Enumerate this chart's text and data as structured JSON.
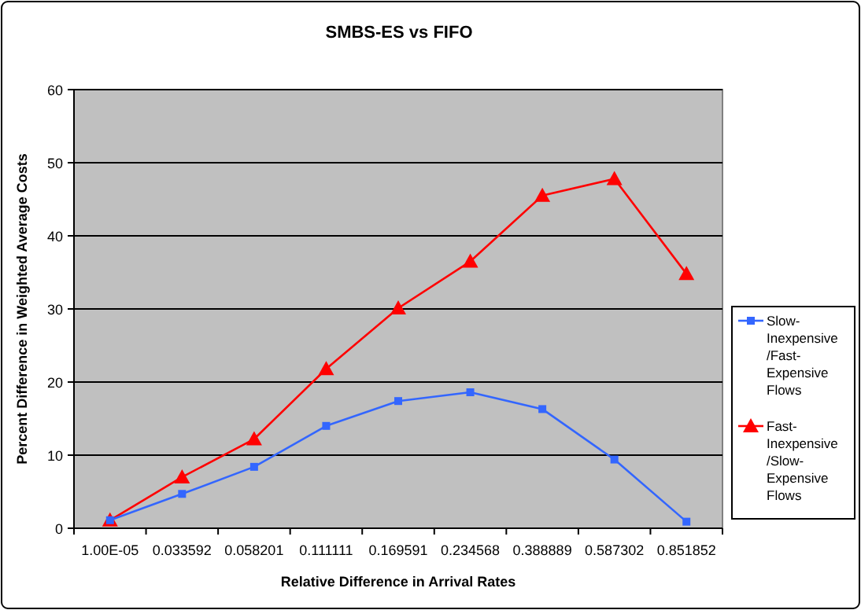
{
  "chart_data": {
    "type": "line",
    "title": "SMBS-ES vs FIFO",
    "xlabel": "Relative Difference in Arrival Rates",
    "ylabel": "Percent Difference in Weighted Average Costs",
    "categories": [
      "1.00E-05",
      "0.033592",
      "0.058201",
      "0.111111",
      "0.169591",
      "0.234568",
      "0.388889",
      "0.587302",
      "0.851852"
    ],
    "series": [
      {
        "name": "Slow-Inexpensive/Fast-Expensive Flows",
        "color": "#3366ff",
        "marker": "square",
        "values": [
          1.1,
          4.7,
          8.4,
          14.0,
          17.4,
          18.6,
          16.3,
          9.4,
          0.9
        ]
      },
      {
        "name": "Fast-Inexpensive/Slow-Expensive Flows",
        "color": "#ff0000",
        "marker": "triangle",
        "values": [
          1.1,
          7.0,
          12.2,
          21.8,
          30.1,
          36.5,
          45.5,
          47.8,
          34.8
        ]
      }
    ],
    "ylim": [
      0,
      60
    ],
    "yticks": [
      0,
      10,
      20,
      30,
      40,
      50,
      60
    ],
    "grid": "y",
    "legend": "right"
  }
}
